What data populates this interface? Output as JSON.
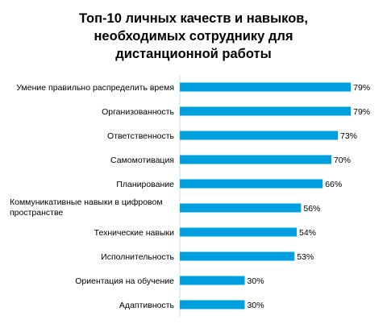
{
  "chart_data": {
    "type": "bar",
    "orientation": "horizontal",
    "title": [
      "Топ-10 личных качеств и навыков,",
      "необходимых сотруднику для",
      "дистанционной работы"
    ],
    "xlabel": "",
    "ylabel": "",
    "xlim": [
      0,
      100
    ],
    "grid": false,
    "legend": "none",
    "value_format": "{v}%",
    "bar_color": "#009FDF",
    "categories": [
      [
        "Умение правильно распределить время"
      ],
      [
        "Организованность"
      ],
      [
        "Ответственность"
      ],
      [
        "Самомотивация"
      ],
      [
        "Планирование"
      ],
      [
        "Коммуникативные навыки в цифровом",
        "пространстве"
      ],
      [
        "Технические навыки"
      ],
      [
        "Исполнительность"
      ],
      [
        "Ориентация на обучение"
      ],
      [
        "Адаптивность"
      ]
    ],
    "values": [
      79,
      79,
      73,
      70,
      66,
      56,
      54,
      53,
      30,
      30
    ]
  }
}
